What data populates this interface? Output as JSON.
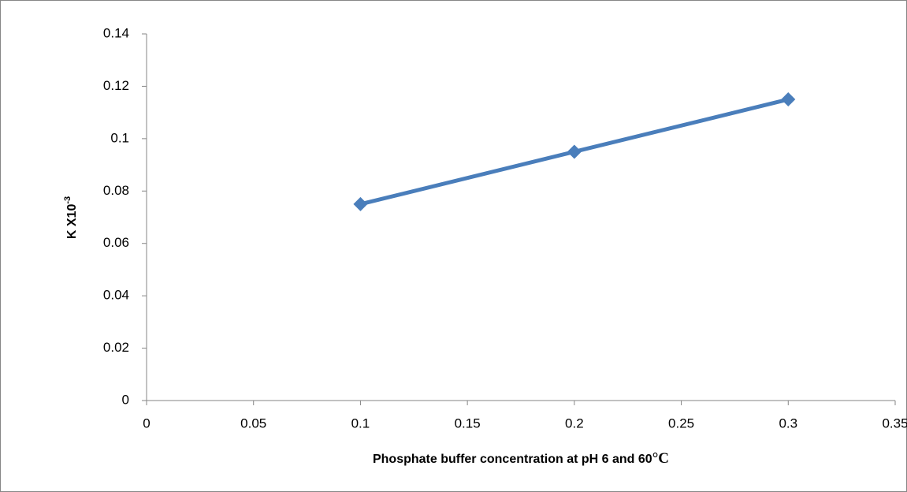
{
  "chart_data": {
    "type": "line",
    "x_label": "Phosphate buffer concentration at pH 6 and 60",
    "x_label_unit": "°C",
    "y_label": "K  X10",
    "y_label_superscript": "-3",
    "x": [
      0.1,
      0.2,
      0.3
    ],
    "series": [
      {
        "color": "#4a7ebb",
        "marker": "diamond",
        "values": [
          0.075,
          0.095,
          0.115
        ]
      }
    ],
    "xlim": [
      0,
      0.35
    ],
    "xticks": [
      0,
      0.05,
      0.1,
      0.15,
      0.2,
      0.25,
      0.3,
      0.35
    ],
    "ylim": [
      0,
      0.14
    ],
    "yticks": [
      0,
      0.02,
      0.04,
      0.06,
      0.08,
      0.1,
      0.12,
      0.14
    ],
    "grid": false
  }
}
